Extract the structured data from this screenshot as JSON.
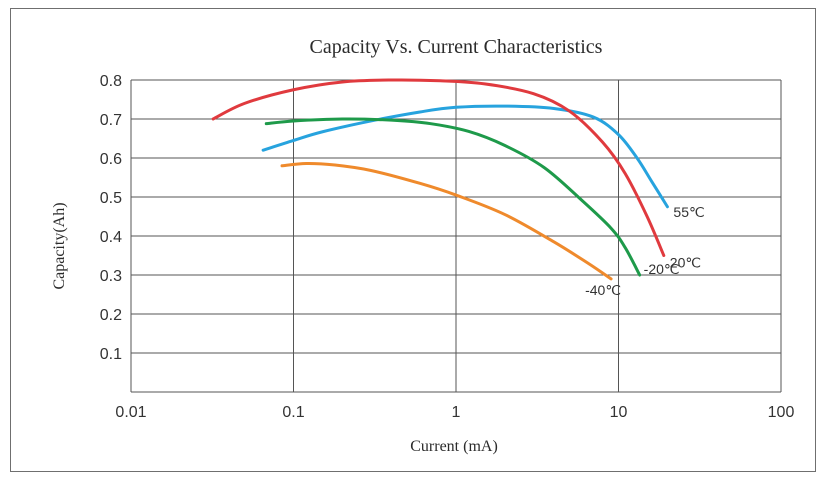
{
  "chart_data": {
    "type": "line",
    "title": "Capacity Vs. Current Characteristics",
    "xlabel": "Current (mA)",
    "ylabel": "Capacity(Ah)",
    "x_scale": "log",
    "xlim": [
      0.01,
      100
    ],
    "ylim": [
      0,
      0.8
    ],
    "x_ticks": [
      "0.01",
      "0.1",
      "1",
      "10",
      "100"
    ],
    "y_ticks": [
      "0.1",
      "0.2",
      "0.3",
      "0.4",
      "0.5",
      "0.6",
      "0.7",
      "0.8"
    ],
    "grid": true,
    "legend": "none",
    "series": [
      {
        "name": "55℃",
        "color": "#27a3de",
        "points": [
          [
            0.065,
            0.62
          ],
          [
            0.1,
            0.645
          ],
          [
            0.15,
            0.667
          ],
          [
            0.3,
            0.695
          ],
          [
            0.6,
            0.718
          ],
          [
            1.0,
            0.73
          ],
          [
            2.0,
            0.733
          ],
          [
            4.0,
            0.727
          ],
          [
            7.0,
            0.705
          ],
          [
            10.0,
            0.66
          ],
          [
            13.0,
            0.6
          ],
          [
            16.0,
            0.54
          ],
          [
            20.0,
            0.475
          ]
        ]
      },
      {
        "name": "20℃",
        "color": "#e03a3e",
        "points": [
          [
            0.032,
            0.7
          ],
          [
            0.05,
            0.74
          ],
          [
            0.1,
            0.775
          ],
          [
            0.2,
            0.795
          ],
          [
            0.4,
            0.8
          ],
          [
            0.8,
            0.798
          ],
          [
            1.5,
            0.79
          ],
          [
            3.0,
            0.765
          ],
          [
            5.0,
            0.72
          ],
          [
            8.0,
            0.64
          ],
          [
            11.0,
            0.56
          ],
          [
            15.0,
            0.45
          ],
          [
            19.0,
            0.35
          ]
        ]
      },
      {
        "name": "-20℃",
        "color": "#1e9a4a",
        "points": [
          [
            0.068,
            0.688
          ],
          [
            0.1,
            0.695
          ],
          [
            0.2,
            0.7
          ],
          [
            0.4,
            0.697
          ],
          [
            0.7,
            0.688
          ],
          [
            1.2,
            0.668
          ],
          [
            2.0,
            0.632
          ],
          [
            3.5,
            0.575
          ],
          [
            6.0,
            0.49
          ],
          [
            9.0,
            0.42
          ],
          [
            11.0,
            0.37
          ],
          [
            13.5,
            0.3
          ]
        ]
      },
      {
        "name": "-40℃",
        "color": "#ef8a2c",
        "points": [
          [
            0.085,
            0.58
          ],
          [
            0.12,
            0.586
          ],
          [
            0.18,
            0.582
          ],
          [
            0.3,
            0.568
          ],
          [
            0.6,
            0.535
          ],
          [
            1.0,
            0.505
          ],
          [
            2.0,
            0.455
          ],
          [
            4.0,
            0.385
          ],
          [
            6.5,
            0.33
          ],
          [
            9.0,
            0.29
          ]
        ]
      }
    ]
  }
}
